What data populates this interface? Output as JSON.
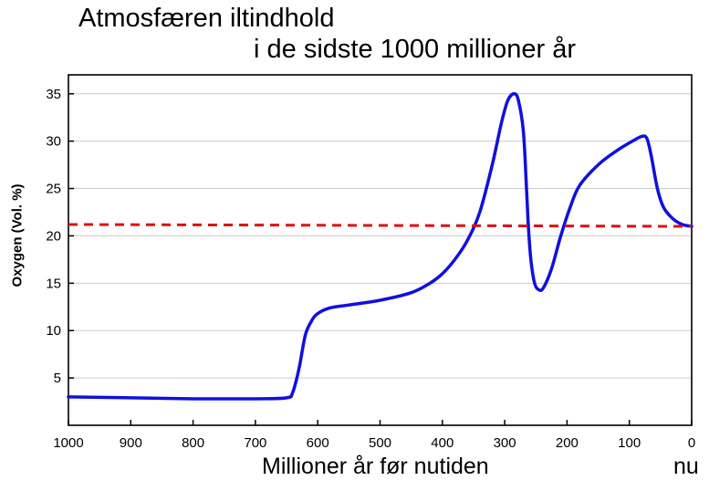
{
  "chart_data": {
    "type": "line",
    "title_line1": "Atmosfæren iltindhold",
    "title_line2": "i de sidste 1000 millioner år",
    "xlabel": "Millioner år før nutiden",
    "x_end_label": "nu",
    "ylabel": "Oxygen (Vol. %)",
    "xlim": [
      1000,
      0
    ],
    "ylim": [
      0,
      37
    ],
    "x_ticks": [
      1000,
      900,
      800,
      700,
      600,
      500,
      400,
      300,
      200,
      100,
      0
    ],
    "y_ticks": [
      5,
      10,
      15,
      20,
      25,
      30,
      35
    ],
    "grid": "horizontal",
    "series": [
      {
        "color": "#1010dd",
        "style": "solid",
        "points": [
          [
            1000,
            3.0
          ],
          [
            900,
            2.9
          ],
          [
            800,
            2.8
          ],
          [
            700,
            2.8
          ],
          [
            650,
            2.9
          ],
          [
            640,
            3.5
          ],
          [
            630,
            6.0
          ],
          [
            620,
            9.5
          ],
          [
            610,
            11.0
          ],
          [
            600,
            11.8
          ],
          [
            580,
            12.4
          ],
          [
            550,
            12.7
          ],
          [
            500,
            13.2
          ],
          [
            450,
            14.0
          ],
          [
            420,
            15.0
          ],
          [
            400,
            16.0
          ],
          [
            380,
            17.5
          ],
          [
            360,
            19.5
          ],
          [
            340,
            22.5
          ],
          [
            320,
            27.5
          ],
          [
            305,
            32.0
          ],
          [
            295,
            34.3
          ],
          [
            285,
            35.0
          ],
          [
            278,
            34.3
          ],
          [
            270,
            31.0
          ],
          [
            265,
            25.0
          ],
          [
            262,
            21.0
          ],
          [
            258,
            17.5
          ],
          [
            252,
            15.0
          ],
          [
            245,
            14.3
          ],
          [
            238,
            14.5
          ],
          [
            225,
            16.5
          ],
          [
            210,
            20.0
          ],
          [
            195,
            23.0
          ],
          [
            180,
            25.3
          ],
          [
            150,
            27.5
          ],
          [
            120,
            29.0
          ],
          [
            95,
            30.0
          ],
          [
            80,
            30.5
          ],
          [
            72,
            30.3
          ],
          [
            65,
            28.5
          ],
          [
            55,
            25.0
          ],
          [
            45,
            23.0
          ],
          [
            30,
            21.8
          ],
          [
            15,
            21.2
          ],
          [
            0,
            21.0
          ]
        ]
      },
      {
        "color": "#dd1111",
        "style": "dashed",
        "points": [
          [
            1000,
            21.2
          ],
          [
            0,
            21.0
          ]
        ]
      }
    ]
  }
}
